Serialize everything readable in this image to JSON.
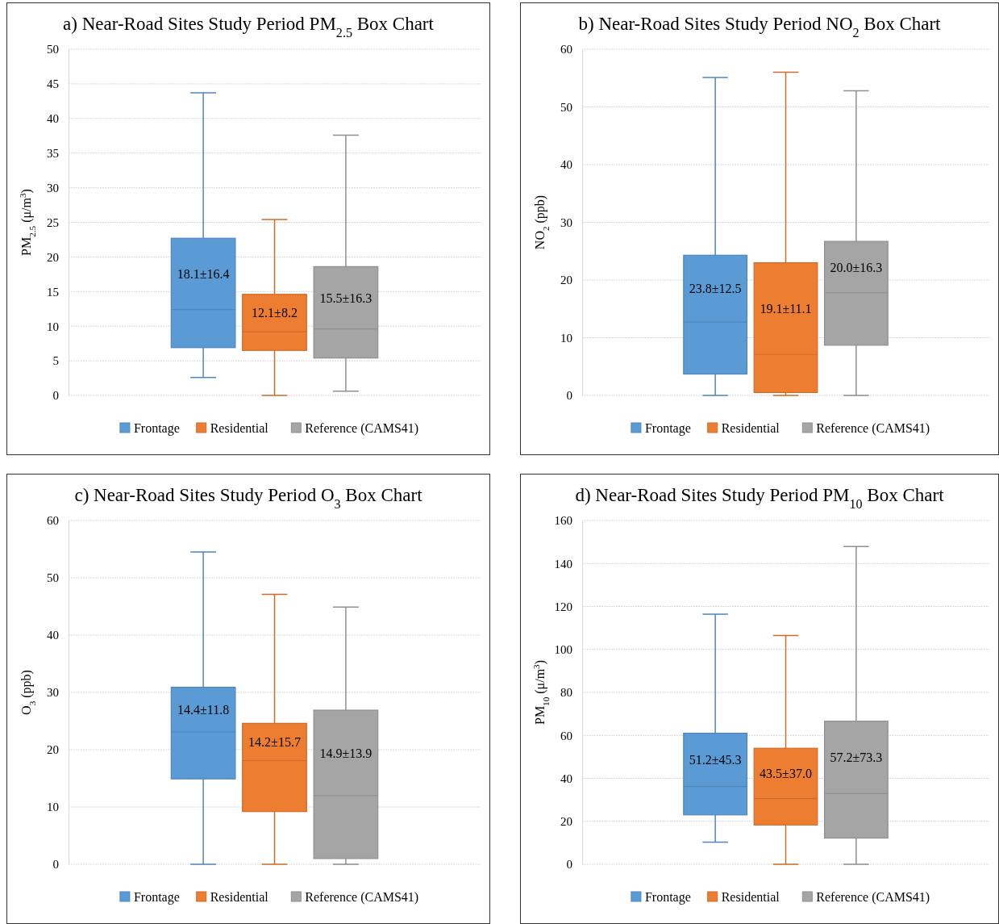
{
  "chart_data": [
    {
      "type": "box",
      "title": "a) Near-Road Sites Study Period PM$_{2.5}$ Box Chart",
      "ylabel": "PM$_{2.5}$ (μ/m$^{3}$)",
      "categories": [
        null
      ],
      "ylim": [
        0,
        50
      ],
      "yticks": [
        0,
        5,
        10,
        15,
        20,
        25,
        30,
        35,
        40,
        45,
        50
      ],
      "grid": "y",
      "legend": "bottom",
      "series": [
        {
          "name": "Frontage",
          "color": "#5b9bd5",
          "boxes": [
            {
              "low": 2.6,
              "q1": 6.9,
              "median": 12.4,
              "q3": 22.7,
              "high": 43.7
            }
          ]
        },
        {
          "name": "Residential",
          "color": "#ed7d31",
          "boxes": [
            {
              "low": 0,
              "q1": 6.5,
              "median": 9.2,
              "q3": 14.6,
              "high": 25.4
            }
          ]
        },
        {
          "name": "Reference (CAMS41)",
          "color": "#a5a5a5",
          "boxes": [
            {
              "low": 0.6,
              "q1": 5.4,
              "median": 9.6,
              "q3": 18.6,
              "high": 37.6
            }
          ]
        }
      ],
      "annotations": [
        "18.1±16.4",
        "12.1±8.2",
        "15.5±16.3"
      ]
    },
    {
      "type": "box",
      "title": "b) Near-Road Sites Study Period NO$_{2}$ Box Chart",
      "ylabel": "NO$_{2}$ (ppb)",
      "categories": [
        null
      ],
      "ylim": [
        0,
        60
      ],
      "yticks": [
        0,
        10,
        20,
        30,
        40,
        50,
        60
      ],
      "grid": "y",
      "legend": "bottom",
      "series": [
        {
          "name": "Frontage",
          "color": "#5b9bd5",
          "boxes": [
            {
              "low": 0,
              "q1": 3.7,
              "median": 12.7,
              "q3": 24.3,
              "high": 55.1
            }
          ]
        },
        {
          "name": "Residential",
          "color": "#ed7d31",
          "boxes": [
            {
              "low": 0,
              "q1": 0.5,
              "median": 7.1,
              "q3": 23.0,
              "high": 56.0
            }
          ]
        },
        {
          "name": "Reference (CAMS41)",
          "color": "#a5a5a5",
          "boxes": [
            {
              "low": 0,
              "q1": 8.7,
              "median": 17.8,
              "q3": 26.7,
              "high": 52.8
            }
          ]
        }
      ],
      "annotations": [
        "23.8±12.5",
        "19.1±11.1",
        "20.0±16.3"
      ]
    },
    {
      "type": "box",
      "title": "c) Near-Road Sites Study Period O$_{3}$ Box Chart",
      "ylabel": "O$_{3}$ (ppb)",
      "categories": [
        null
      ],
      "ylim": [
        0,
        60
      ],
      "yticks": [
        0,
        10,
        20,
        30,
        40,
        50,
        60
      ],
      "grid": "y",
      "legend": "bottom",
      "series": [
        {
          "name": "Frontage",
          "color": "#5b9bd5",
          "boxes": [
            {
              "low": 0,
              "q1": 14.9,
              "median": 23.1,
              "q3": 30.9,
              "high": 54.5
            }
          ]
        },
        {
          "name": "Residential",
          "color": "#ed7d31",
          "boxes": [
            {
              "low": 0,
              "q1": 9.2,
              "median": 18.1,
              "q3": 24.6,
              "high": 47.1
            }
          ]
        },
        {
          "name": "Reference (CAMS41)",
          "color": "#a5a5a5",
          "boxes": [
            {
              "low": 0,
              "q1": 1.0,
              "median": 12.0,
              "q3": 26.9,
              "high": 44.9
            }
          ]
        }
      ],
      "annotations": [
        "14.4±11.8",
        "14.2±15.7",
        "14.9±13.9"
      ]
    },
    {
      "type": "box",
      "title": "d) Near-Road Sites Study Period PM$_{10}$ Box Chart",
      "ylabel": "PM$_{10}$ (μ/m$^{3}$)",
      "categories": [
        null
      ],
      "ylim": [
        0,
        160
      ],
      "yticks": [
        0,
        20,
        40,
        60,
        80,
        100,
        120,
        140,
        160
      ],
      "grid": "y",
      "legend": "bottom",
      "series": [
        {
          "name": "Frontage",
          "color": "#5b9bd5",
          "boxes": [
            {
              "low": 10.3,
              "q1": 23.0,
              "median": 36.2,
              "q3": 61.0,
              "high": 116.4
            }
          ]
        },
        {
          "name": "Residential",
          "color": "#ed7d31",
          "boxes": [
            {
              "low": 0,
              "q1": 18.3,
              "median": 30.6,
              "q3": 54.0,
              "high": 106.5
            }
          ]
        },
        {
          "name": "Reference (CAMS41)",
          "color": "#a5a5a5",
          "boxes": [
            {
              "low": 0,
              "q1": 12.2,
              "median": 32.9,
              "q3": 66.6,
              "high": 147.9
            }
          ]
        }
      ],
      "annotations": [
        "51.2±45.3",
        "43.5±37.0",
        "57.2±73.3"
      ]
    }
  ]
}
